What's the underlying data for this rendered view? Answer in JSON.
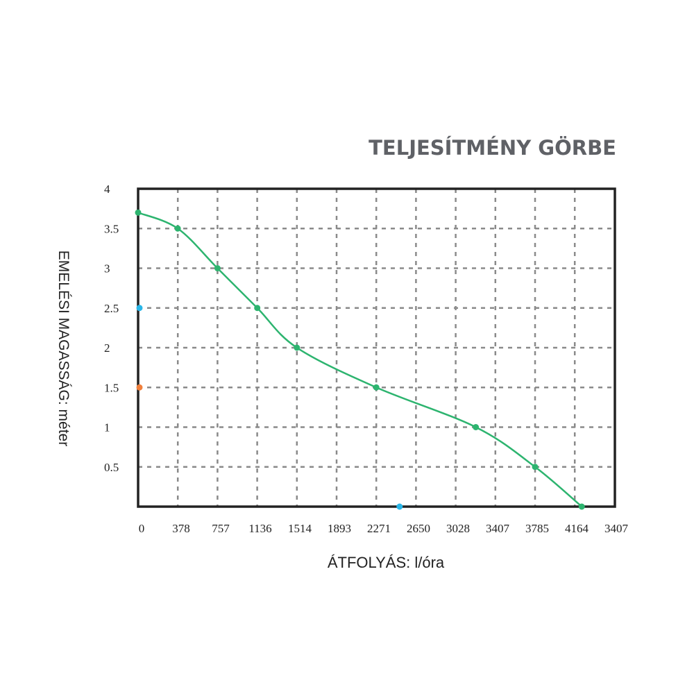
{
  "chart_data": {
    "type": "line",
    "title": "TELJESÍTMÉNY GÖRBE",
    "xlabel": "ÁTFOLYÁS: l/óra",
    "ylabel": "EMELÉSI MAGASSÁG: méter",
    "x_ticks": [
      "0",
      "378",
      "757",
      "1136",
      "1514",
      "1893",
      "2271",
      "2650",
      "3028",
      "3407",
      "3785",
      "4164",
      "3407"
    ],
    "y_ticks": [
      "0.5",
      "1",
      "1.5",
      "2",
      "2.5",
      "3",
      "3.5",
      "4"
    ],
    "ylim": [
      0,
      4
    ],
    "grid": true,
    "series": [
      {
        "x": [
          0,
          378,
          757,
          1136,
          1514,
          2271,
          3220,
          3785,
          4230
        ],
        "y": [
          3.7,
          3.5,
          3.0,
          2.5,
          2.0,
          1.5,
          1.0,
          0.5,
          0.0
        ]
      }
    ],
    "highlight_points": [
      {
        "x": 0,
        "y": 2.5,
        "color": "#29b6e8"
      },
      {
        "x": 0,
        "y": 1.5,
        "color": "#f07f3c"
      },
      {
        "x": 2480,
        "y": 0,
        "color": "#29b6e8"
      }
    ],
    "colors": {
      "line": "#2db46f",
      "grid": "#8a8a8a",
      "frame": "#222222",
      "title": "#5f6166",
      "text": "#222222"
    }
  }
}
